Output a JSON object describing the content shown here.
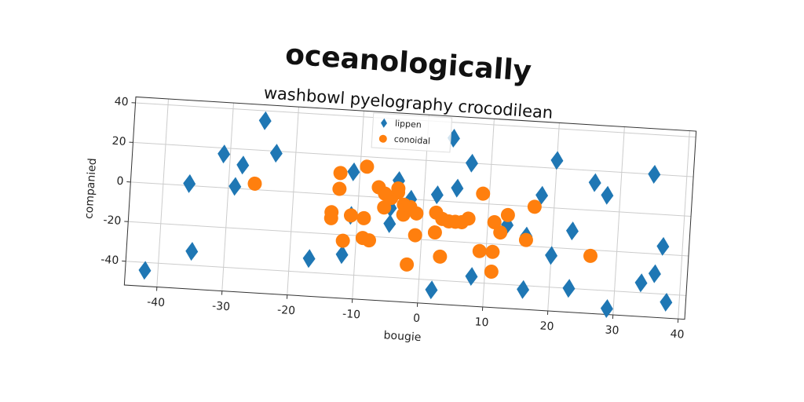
{
  "chart_data": {
    "type": "scatter",
    "title": "oceanologically",
    "subtitle": "washbowl pyelography crocodilean",
    "x_label": "bougie",
    "y_label": "companied",
    "xlim": [
      -45,
      41
    ],
    "ylim": [
      -52,
      43
    ],
    "xticks": [
      -40,
      -30,
      -20,
      -10,
      0,
      10,
      20,
      30,
      40
    ],
    "yticks": [
      -40,
      -20,
      0,
      20,
      40
    ],
    "grid": true,
    "legend": "upper center",
    "series": [
      {
        "name": "lippen",
        "color": "#1f77b4",
        "marker": "diamond",
        "x": [
          -42,
          -36,
          -35,
          -31,
          -29,
          -28,
          -25,
          -23,
          -17,
          -12,
          -11,
          -11,
          -5,
          -4,
          -2,
          -5,
          2,
          2,
          4,
          5,
          7,
          8,
          13,
          16,
          16,
          18,
          20,
          20,
          23,
          23,
          26,
          28,
          29,
          34,
          35,
          36,
          37,
          38
        ],
        "values": [
          -44,
          1,
          -33,
          17,
          1,
          12,
          35,
          19,
          -33,
          -30,
          12,
          -10,
          -13,
          9,
          0,
          -5,
          -45,
          3,
          32,
          7,
          20,
          -37,
          -10,
          -42,
          -15,
          6,
          -24,
          24,
          -11,
          -40,
          14,
          8,
          -49,
          -35,
          20,
          -30,
          -16,
          -44
        ]
      },
      {
        "name": "conoidal",
        "color": "#ff7f0e",
        "marker": "circle",
        "x": [
          -26,
          -13,
          -13,
          -14,
          -14,
          -11,
          -12,
          -9,
          -9,
          -9,
          -8,
          -7,
          -6,
          -6,
          -5,
          -4,
          -4,
          -3,
          -3,
          -2,
          -2,
          -1,
          -1,
          2,
          2,
          3,
          3,
          4,
          5,
          6,
          7,
          9,
          9,
          11,
          11,
          11,
          12,
          13,
          16,
          17,
          26
        ],
        "values": [
          3,
          11,
          3,
          -9,
          -12,
          -10,
          -23,
          15,
          -11,
          -21,
          -22,
          5,
          -5,
          2,
          0,
          3,
          5,
          -8,
          -3,
          -4,
          -33,
          -7,
          -18,
          -6,
          -16,
          -9,
          -28,
          -10,
          -10,
          -10,
          -8,
          5,
          -24,
          -24,
          -34,
          -9,
          -14,
          -5,
          -17,
          0,
          -23
        ]
      }
    ]
  }
}
